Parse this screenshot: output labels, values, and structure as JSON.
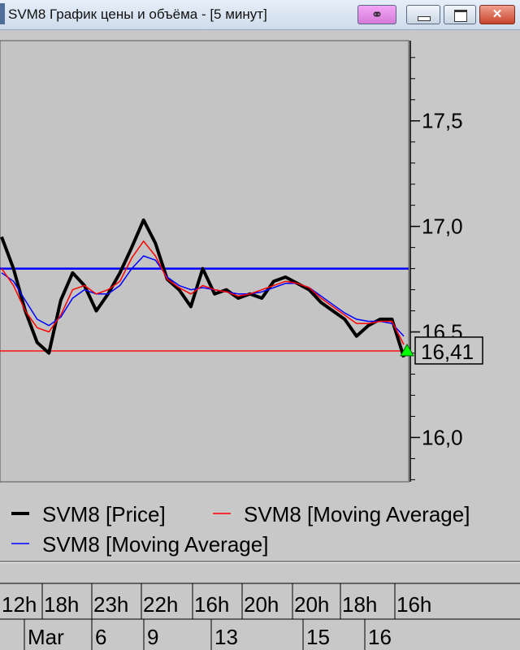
{
  "window": {
    "title": "SVM8 График цены и объёма - [5 минут]",
    "buttons": [
      "link",
      "minimize",
      "maximize",
      "close"
    ]
  },
  "chart_data": {
    "type": "line",
    "y_axis": {
      "ticks": [
        "17,5",
        "17,0",
        "16,5",
        "16,0"
      ],
      "tick_values": [
        17.5,
        17.0,
        16.5,
        16.0
      ],
      "range": [
        15.79,
        17.88
      ],
      "side": "right"
    },
    "current_price": {
      "label": "16,41",
      "value": 16.41
    },
    "horizontal_lines": [
      {
        "value": 16.8,
        "color": "#0000ff"
      },
      {
        "value": 16.41,
        "color": "#ff0000"
      }
    ],
    "series": [
      {
        "name": "SVM8 [Price]",
        "color": "#000000",
        "values": [
          16.95,
          16.8,
          16.6,
          16.45,
          16.4,
          16.65,
          16.78,
          16.72,
          16.6,
          16.68,
          16.78,
          16.9,
          17.03,
          16.92,
          16.75,
          16.7,
          16.62,
          16.8,
          16.68,
          16.7,
          16.66,
          16.68,
          16.66,
          16.74,
          16.76,
          16.73,
          16.7,
          16.64,
          16.6,
          16.56,
          16.48,
          16.53,
          16.56,
          16.56,
          16.38
        ]
      },
      {
        "name": "SVM8 [Moving Average]",
        "color": "#ff0000",
        "values": [
          16.8,
          16.72,
          16.6,
          16.52,
          16.5,
          16.58,
          16.7,
          16.72,
          16.68,
          16.7,
          16.74,
          16.85,
          16.93,
          16.86,
          16.75,
          16.71,
          16.68,
          16.72,
          16.7,
          16.69,
          16.67,
          16.68,
          16.7,
          16.72,
          16.74,
          16.73,
          16.71,
          16.66,
          16.62,
          16.58,
          16.54,
          16.54,
          16.55,
          16.55,
          16.44
        ]
      },
      {
        "name": "SVM8 [Moving Average]",
        "color": "#0000ff",
        "values": [
          16.78,
          16.74,
          16.65,
          16.56,
          16.53,
          16.57,
          16.66,
          16.7,
          16.68,
          16.68,
          16.72,
          16.8,
          16.86,
          16.84,
          16.76,
          16.72,
          16.7,
          16.71,
          16.7,
          16.69,
          16.68,
          16.68,
          16.69,
          16.71,
          16.73,
          16.73,
          16.71,
          16.67,
          16.63,
          16.59,
          16.56,
          16.55,
          16.55,
          16.54,
          16.48
        ]
      }
    ],
    "legend": {
      "placement": "bottom",
      "entries": [
        "SVM8 [Price]",
        "SVM8 [Moving Average]",
        "SVM8 [Moving Average]"
      ]
    },
    "x_axis": {
      "hours": [
        "12h",
        "18h",
        "23h",
        "22h",
        "16h",
        "20h",
        "20h",
        "18h",
        "16h"
      ],
      "days": [
        "Mar",
        "6",
        "9",
        "13",
        "15",
        "16"
      ]
    }
  },
  "colors": {
    "background": "#c8c8c8",
    "last_marker": "#00ff00"
  }
}
